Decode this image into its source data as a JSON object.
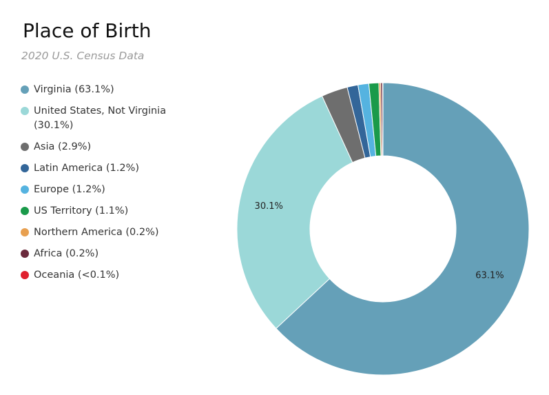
{
  "title": "Place of Birth",
  "subtitle": "2020 U.S. Census Data",
  "chart_data": {
    "type": "pie",
    "style": "donut",
    "legend_position": "left",
    "title": "Place of Birth",
    "subtitle": "2020 U.S. Census Data",
    "series": [
      {
        "name": "Virginia",
        "value": 63.1,
        "legend_label": "Virginia (63.1%)",
        "data_label": "63.1%",
        "color": "#65a0b8"
      },
      {
        "name": "United States, Not Virginia",
        "value": 30.1,
        "legend_label": "United States, Not Virginia (30.1%)",
        "data_label": "30.1%",
        "color": "#9bd8d8"
      },
      {
        "name": "Asia",
        "value": 2.9,
        "legend_label": "Asia (2.9%)",
        "data_label": "",
        "color": "#6e6e6e"
      },
      {
        "name": "Latin America",
        "value": 1.2,
        "legend_label": "Latin America (1.2%)",
        "data_label": "",
        "color": "#336699"
      },
      {
        "name": "Europe",
        "value": 1.2,
        "legend_label": "Europe (1.2%)",
        "data_label": "",
        "color": "#55b3e0"
      },
      {
        "name": "US Territory",
        "value": 1.1,
        "legend_label": "US Territory (1.1%)",
        "data_label": "",
        "color": "#1a9a4a"
      },
      {
        "name": "Northern America",
        "value": 0.2,
        "legend_label": "Northern America (0.2%)",
        "data_label": "",
        "color": "#e8a050"
      },
      {
        "name": "Africa",
        "value": 0.2,
        "legend_label": "Africa (0.2%)",
        "data_label": "",
        "color": "#6b2a3c"
      },
      {
        "name": "Oceania",
        "value": 0.05,
        "legend_label": "Oceania (<0.1%)",
        "data_label": "",
        "color": "#e0202e"
      }
    ]
  }
}
